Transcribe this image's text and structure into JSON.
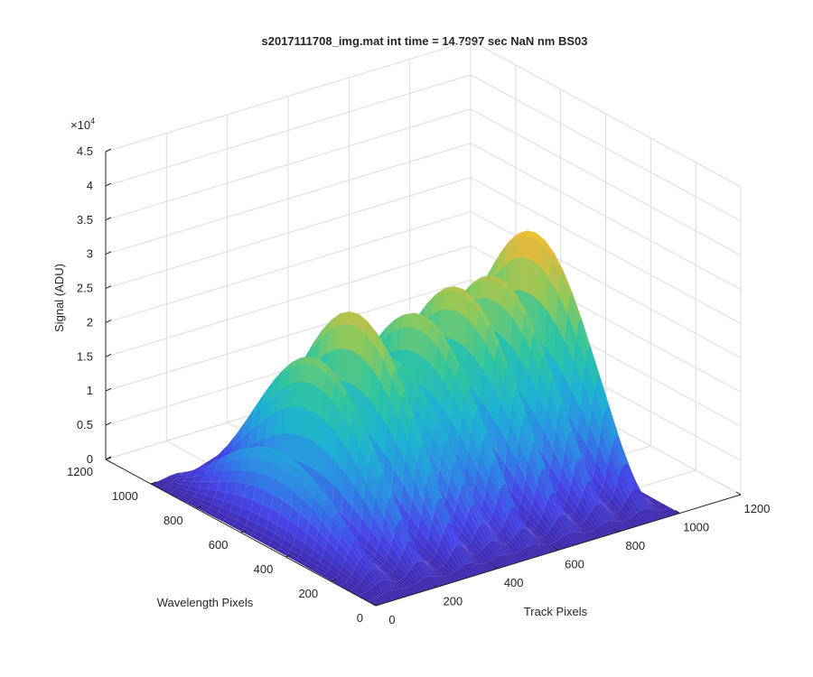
{
  "chart_data": {
    "type": "surface",
    "title": "s2017111708_img.mat int time = 14.7997 sec  NaN nm BS03",
    "xlabel": "Track Pixels",
    "ylabel": "Wavelength Pixels",
    "zlabel": "Signal (ADU)",
    "z_exponent_label": "×10",
    "z_exponent": "4",
    "xlim": [
      0,
      1200
    ],
    "ylim": [
      0,
      1200
    ],
    "zlim": [
      0,
      45000
    ],
    "x_ticks": [
      "0",
      "200",
      "400",
      "600",
      "800",
      "1000",
      "1200"
    ],
    "y_ticks": [
      "0",
      "200",
      "400",
      "600",
      "800",
      "1000",
      "1200"
    ],
    "z_ticks": [
      "0",
      "0.5",
      "1",
      "1.5",
      "2",
      "2.5",
      "3",
      "3.5",
      "4",
      "4.5"
    ],
    "grid": true,
    "track_peaks": [
      {
        "x": 80,
        "peak": 12000
      },
      {
        "x": 200,
        "peak": 24000
      },
      {
        "x": 330,
        "peak": 29000
      },
      {
        "x": 440,
        "peak": 21000
      },
      {
        "x": 540,
        "peak": 26000
      },
      {
        "x": 670,
        "peak": 28000
      },
      {
        "x": 790,
        "peak": 28000
      },
      {
        "x": 910,
        "peak": 33000
      }
    ],
    "track_width": 40,
    "x_extent": [
      0,
      1000
    ],
    "y_extent": [
      0,
      1000
    ],
    "colormap": [
      "#3e26a8",
      "#4646e8",
      "#2e8ae5",
      "#1eb2d2",
      "#2ec5a0",
      "#8ec95c",
      "#e9b93a",
      "#f9e31b"
    ]
  }
}
